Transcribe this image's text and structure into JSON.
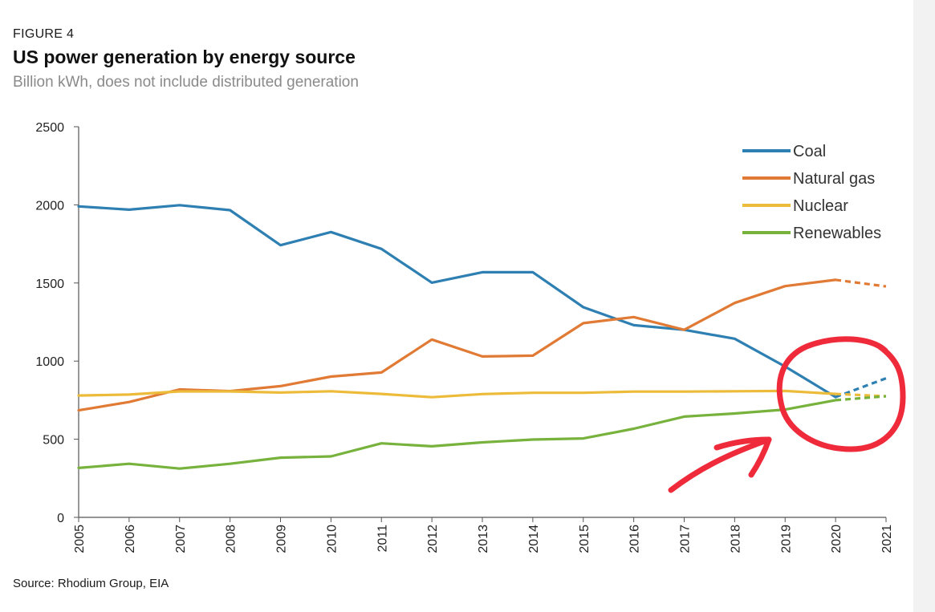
{
  "figure": {
    "label": "FIGURE 4",
    "title": "US power generation by energy source",
    "subtitle": "Billion kWh, does not include distributed generation",
    "source": "Source: Rhodium Group, EIA"
  },
  "colors": {
    "coal": "#2e7fb2",
    "natural_gas": "#e07a35",
    "nuclear": "#edbb3a",
    "renewables": "#76b23c",
    "axis": "#555555",
    "annotation": "#ef2b3b"
  },
  "chart_data": {
    "type": "line",
    "title": "US power generation by energy source",
    "xlabel": "",
    "ylabel": "",
    "x": [
      2005,
      2006,
      2007,
      2008,
      2009,
      2010,
      2011,
      2012,
      2013,
      2014,
      2015,
      2016,
      2017,
      2018,
      2019,
      2020,
      2021
    ],
    "xtick_labels": [
      "2005",
      "2006",
      "2007",
      "2008",
      "2009",
      "2010",
      "2011",
      "2012",
      "2013",
      "2014",
      "2015",
      "2016",
      "2017",
      "2018",
      "2019",
      "2020",
      "2021"
    ],
    "ylim": [
      0,
      2500
    ],
    "yticks": [
      0,
      500,
      1000,
      1500,
      2000,
      2500
    ],
    "ytick_labels": [
      "0",
      "500",
      "1000",
      "1500",
      "2000",
      "2500"
    ],
    "grid": false,
    "legend_position": "top-right",
    "projected_from_x": 2020,
    "series": [
      {
        "name": "Coal",
        "color": "#2e7fb2",
        "values": [
          1990,
          1969,
          1998,
          1966,
          1742,
          1826,
          1718,
          1502,
          1569,
          1569,
          1345,
          1230,
          1200,
          1143,
          965,
          770,
          890
        ]
      },
      {
        "name": "Natural gas",
        "color": "#e07a35",
        "values": [
          685,
          738,
          819,
          808,
          840,
          901,
          927,
          1138,
          1030,
          1035,
          1243,
          1282,
          1200,
          1372,
          1480,
          1520,
          1478
        ]
      },
      {
        "name": "Nuclear",
        "color": "#edbb3a",
        "values": [
          780,
          786,
          806,
          806,
          799,
          807,
          790,
          769,
          789,
          797,
          797,
          805,
          805,
          807,
          809,
          790,
          775
        ]
      },
      {
        "name": "Renewables",
        "color": "#76b23c",
        "values": [
          316,
          343,
          312,
          343,
          382,
          390,
          474,
          455,
          480,
          498,
          505,
          567,
          645,
          665,
          690,
          750,
          775
        ]
      }
    ]
  }
}
